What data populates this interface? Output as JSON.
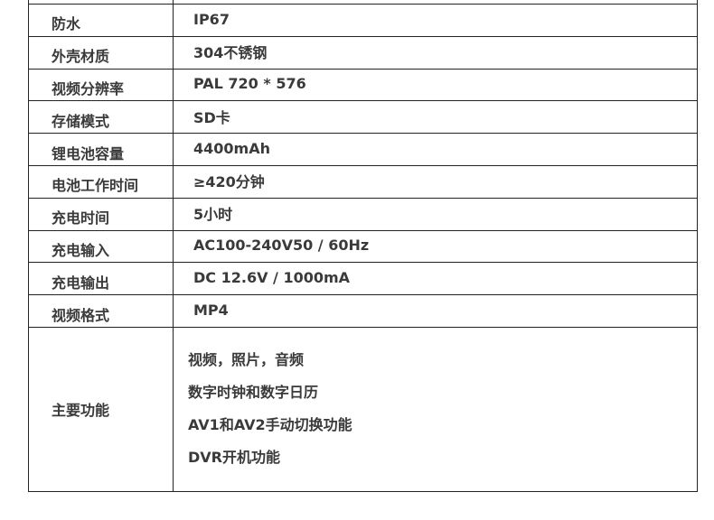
{
  "specs": [
    {
      "label": "防水",
      "value": "IP67"
    },
    {
      "label": "外壳材质",
      "value": "304不锈钢"
    },
    {
      "label": "视频分辨率",
      "value": "PAL 720 * 576"
    },
    {
      "label": "存储模式",
      "value": "SD卡"
    },
    {
      "label": "锂电池容量",
      "value": "4400mAh"
    },
    {
      "label": "电池工作时间",
      "value": "≥420分钟"
    },
    {
      "label": "充电时间",
      "value": "5小时"
    },
    {
      "label": "充电输入",
      "value": "AC100-240V50 / 60Hz"
    },
    {
      "label": "充电输出",
      "value": "DC 12.6V / 1000mA"
    },
    {
      "label": "视频格式",
      "value": "MP4"
    }
  ],
  "features": {
    "label": "主要功能",
    "items": [
      "视频，照片，音频",
      "数字时钟和数字日历",
      "AV1和AV2手动切换功能",
      "DVR开机功能"
    ]
  }
}
